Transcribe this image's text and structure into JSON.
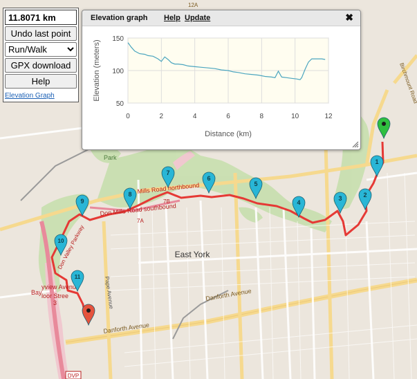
{
  "controls": {
    "distance": "11.8071 km",
    "undo_label": "Undo last point",
    "mode_selected": "Run/Walk",
    "gpx_label": "GPX download",
    "help_label": "Help",
    "elevation_link": "Elevation Graph"
  },
  "elevation_panel": {
    "title": "Elevation graph",
    "help_label": "Help",
    "update_label": "Update",
    "close_symbol": "✖"
  },
  "chart_data": {
    "type": "line",
    "xlabel": "Distance (km)",
    "ylabel": "Elevation (meters)",
    "xlim": [
      0,
      12
    ],
    "ylim": [
      50,
      150
    ],
    "xticks": [
      "0",
      "2",
      "4",
      "6",
      "8",
      "10",
      "12"
    ],
    "yticks": [
      "50",
      "100",
      "150"
    ],
    "grid": true,
    "line_color": "#4aa5bf",
    "x": [
      0,
      0.2,
      0.4,
      0.7,
      1.0,
      1.2,
      1.5,
      1.8,
      2.0,
      2.2,
      2.4,
      2.6,
      2.8,
      3.0,
      3.3,
      3.6,
      4.0,
      4.4,
      4.8,
      5.2,
      5.6,
      6.0,
      6.3,
      6.6,
      7.0,
      7.4,
      7.8,
      8.2,
      8.6,
      8.8,
      9.0,
      9.2,
      9.5,
      9.8,
      10.1,
      10.3,
      10.4,
      10.6,
      10.8,
      11.0,
      11.3,
      11.6,
      11.8
    ],
    "y": [
      143,
      136,
      130,
      126,
      125,
      123,
      122,
      118,
      114,
      121,
      117,
      112,
      110,
      110,
      109,
      107,
      106,
      105,
      104,
      103,
      101,
      100,
      98,
      97,
      95,
      94,
      93,
      91,
      90,
      89,
      99,
      90,
      89,
      88,
      87,
      86,
      89,
      102,
      113,
      118,
      118,
      118,
      117
    ]
  },
  "map": {
    "labels": {
      "east_york": "East York",
      "danforth_ave_main": "Danforth Avenue",
      "danforth_ave_east": "Danforth Avenue",
      "don_mills_nb": "Don Mills Road northbound",
      "don_mills_sb": "Don Mills Road southbound",
      "don_mills_7b": "7B",
      "don_mills_7a": "7A",
      "pape_avenue": "Pape Avenue",
      "don_valley_parkway": "Don Valley Parkway",
      "bayview": "yview Avenu",
      "bloor": "loor Stree",
      "bloor_3": "3",
      "bay": "Bay",
      "birchmount": "Birchmount Road",
      "park": "Park",
      "dvp_shield": "DVP",
      "hwy_12a": "12A"
    },
    "markers": [
      "1",
      "2",
      "3",
      "4",
      "5",
      "6",
      "7",
      "8",
      "9",
      "10",
      "11"
    ],
    "colors": {
      "route": "#e53935",
      "waypoint": "#29b6d6",
      "start": "#2fbf3f",
      "end": "#e5533d"
    }
  }
}
